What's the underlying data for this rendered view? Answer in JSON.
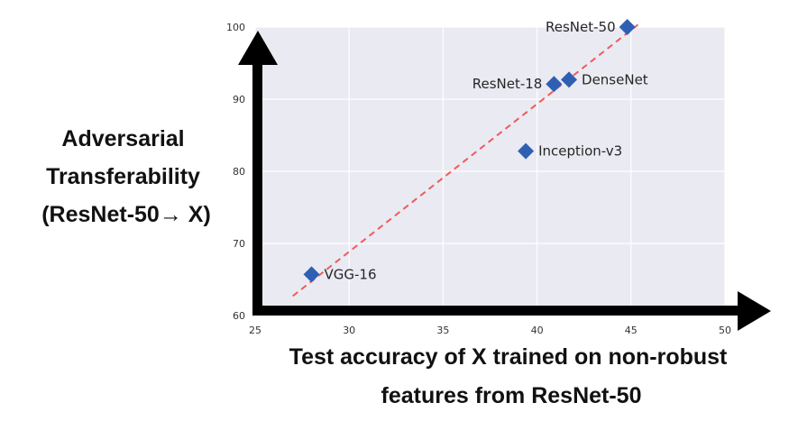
{
  "chart_data": {
    "type": "scatter",
    "title": "",
    "ylabel_lines": [
      "Adversarial",
      "Transferability",
      "(ResNet-50→ X)"
    ],
    "xlabel_lines": [
      "Test accuracy of X trained on non-robust",
      "features from ResNet-50"
    ],
    "xlim": [
      25,
      50
    ],
    "ylim": [
      60,
      100
    ],
    "xticks": [
      "25",
      "30",
      "35",
      "40",
      "45",
      "50"
    ],
    "yticks": [
      "60",
      "70",
      "80",
      "90",
      "100"
    ],
    "grid": true,
    "points": [
      {
        "label": "VGG-16",
        "x": 28.0,
        "y": 65.7
      },
      {
        "label": "Inception-v3",
        "x": 39.4,
        "y": 82.8
      },
      {
        "label": "ResNet-18",
        "x": 40.9,
        "y": 92.1
      },
      {
        "label": "DenseNet",
        "x": 41.7,
        "y": 92.7
      },
      {
        "label": "ResNet-50",
        "x": 44.8,
        "y": 100.0
      }
    ],
    "fit_line": {
      "x": [
        27.0,
        45.5
      ],
      "y": [
        62.7,
        100.6
      ]
    },
    "colors": {
      "marker": "#2f5fb3",
      "fit_line": "#f05a5a",
      "plot_background": "#eaeaf2",
      "grid": "#ffffff",
      "axis_arrow": "#000000"
    }
  }
}
